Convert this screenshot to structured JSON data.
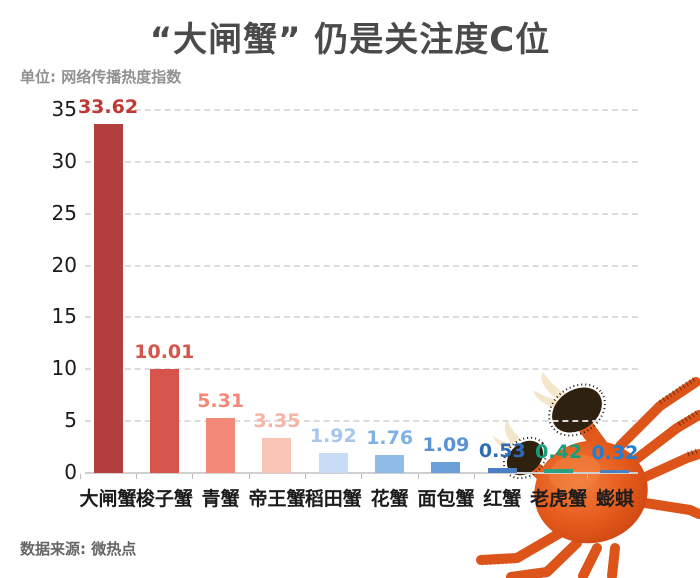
{
  "header": {
    "title": "“大闸蟹” 仍是关注度C位"
  },
  "unit_label": "单位: 网络传播热度指数",
  "footer": {
    "source_label": "数据来源: 微热点"
  },
  "colors": {
    "title": "#4a4a4a",
    "unit_label": "#919191",
    "source_label": "#666666",
    "axis": "#cfcfcf",
    "gridline": "#dcdcdc",
    "ytick_label": "#1a1a1a",
    "category_label": "#1c1c1c"
  },
  "crab": {
    "icon": "cooked-hairy-crab-photo",
    "body_color": "#e0561c",
    "claw_fur_color": "#2f2110",
    "pincer_color": "#f3e6cb"
  },
  "chart_data": {
    "type": "bar",
    "title": "“大闸蟹” 仍是关注度C位",
    "unit": "网络传播热度指数",
    "source": "微热点",
    "categories": [
      "大闸蟹",
      "梭子蟹",
      "青蟹",
      "帝王蟹",
      "稻田蟹",
      "花蟹",
      "面包蟹",
      "红蟹",
      "老虎蟹",
      "蟛蜞"
    ],
    "values": [
      33.62,
      10.01,
      5.31,
      3.35,
      1.92,
      1.76,
      1.09,
      0.53,
      0.42,
      0.32
    ],
    "bar_colors": [
      "#b23e3e",
      "#d5544b",
      "#f28a77",
      "#f8c5b7",
      "#c9dcf5",
      "#8fbbe9",
      "#6b9fd8",
      "#4a80c2",
      "#2aa180",
      "#4a80c2"
    ],
    "value_label_colors": [
      "#bf3a34",
      "#d5544b",
      "#f28a77",
      "#f5b4a4",
      "#a6c6ee",
      "#7fb1e5",
      "#5b93d4",
      "#2e6cb5",
      "#14a07b",
      "#1f7fd4"
    ],
    "yticks": [
      0,
      5,
      10,
      15,
      20,
      25,
      30,
      35
    ],
    "ylim": [
      0,
      35
    ],
    "grid": "horizontal-dashed",
    "value_labels_shown": true,
    "legend": "none"
  }
}
